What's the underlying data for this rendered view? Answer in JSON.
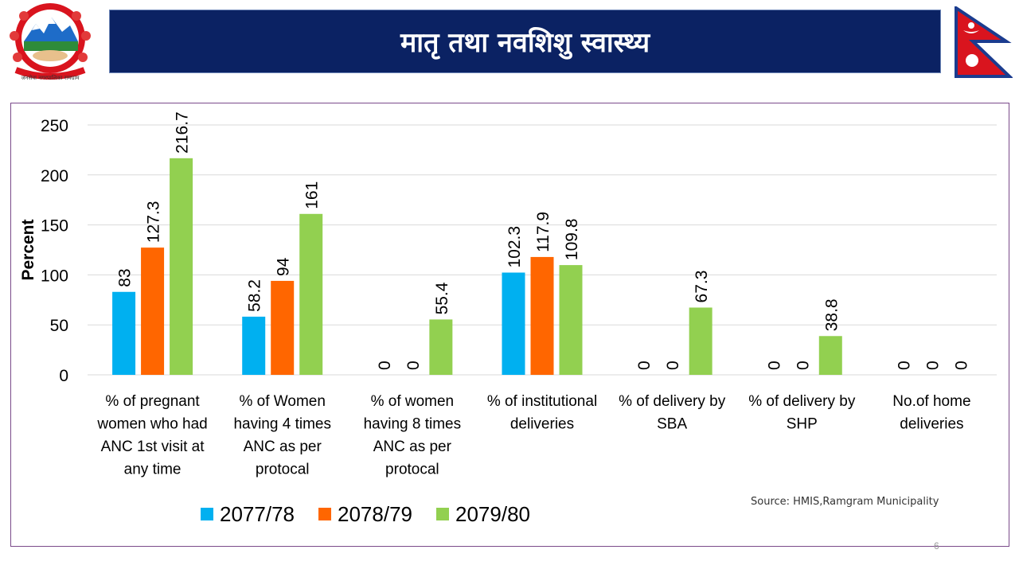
{
  "header": {
    "title": "मातृ तथा नवशिशु स्वास्थ्य"
  },
  "emblem": {
    "icon": "nepal-government-emblem",
    "caption": "जनसेवा नगरपालिका रामग्राम"
  },
  "flag": {
    "icon": "nepal-flag-icon",
    "colors": {
      "field": "#d9141e",
      "border": "#1b3c8f",
      "symbol": "#ffffff"
    }
  },
  "source_text": "Source: HMIS,Ramgram Municipality",
  "page_number": "6",
  "chart_data": {
    "type": "bar",
    "ylabel": "Percent",
    "ylim": [
      0,
      250
    ],
    "yticks": [
      0,
      50,
      100,
      150,
      200,
      250
    ],
    "grid": true,
    "legend_position": "bottom-left",
    "categories": [
      [
        "% of pregnant",
        "women who had",
        "ANC 1st visit at",
        "any time"
      ],
      [
        "% of Women",
        "having 4 times",
        "ANC as per",
        "protocal"
      ],
      [
        "% of women",
        "having 8 times",
        "ANC as per",
        "protocal"
      ],
      [
        "% of institutional",
        "deliveries"
      ],
      [
        "% of delivery by",
        "SBA"
      ],
      [
        "% of delivery by",
        "SHP"
      ],
      [
        "No.of home",
        "deliveries"
      ]
    ],
    "series": [
      {
        "name": "2077/78",
        "color": "#00b0f0",
        "values": [
          83,
          58.2,
          0,
          102.3,
          0,
          0,
          0
        ]
      },
      {
        "name": "2078/79",
        "color": "#ff6600",
        "values": [
          127.3,
          94,
          0,
          117.9,
          0,
          0,
          0
        ]
      },
      {
        "name": "2079/80",
        "color": "#92d050",
        "values": [
          216.7,
          161,
          55.4,
          109.8,
          67.3,
          38.8,
          0
        ]
      }
    ]
  }
}
